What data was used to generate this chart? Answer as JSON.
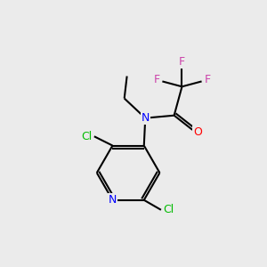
{
  "background_color": "#EBEBEB",
  "bond_color": "#000000",
  "atom_colors": {
    "N_amide": "#0000FF",
    "N_pyridine": "#0000FF",
    "O": "#FF0000",
    "F": "#CC44AA",
    "Cl": "#00BB00",
    "C": "#000000"
  },
  "figsize": [
    3.0,
    3.0
  ],
  "dpi": 100
}
